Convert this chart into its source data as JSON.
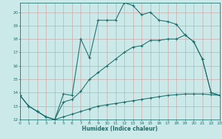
{
  "title": "",
  "xlabel": "Humidex (Indice chaleur)",
  "ylabel": "",
  "bg_color": "#cce9e9",
  "grid_color": "#b0d4d4",
  "line_color": "#1a6e6a",
  "xlim": [
    0,
    23
  ],
  "ylim": [
    12,
    20.7
  ],
  "yticks": [
    12,
    13,
    14,
    15,
    16,
    17,
    18,
    19,
    20
  ],
  "xticks": [
    0,
    1,
    2,
    3,
    4,
    5,
    6,
    7,
    8,
    9,
    10,
    11,
    12,
    13,
    14,
    15,
    16,
    17,
    18,
    19,
    20,
    21,
    22,
    23
  ],
  "line1_x": [
    0,
    1,
    2,
    3,
    4,
    5,
    6,
    7,
    8,
    9,
    10,
    11,
    12,
    13,
    14,
    15,
    16,
    17,
    18,
    19,
    20,
    21,
    22,
    23
  ],
  "line1_y": [
    13.8,
    13.0,
    12.6,
    12.2,
    12.0,
    13.9,
    13.8,
    18.0,
    16.6,
    19.4,
    19.4,
    19.4,
    20.7,
    20.5,
    19.8,
    20.0,
    19.4,
    19.3,
    19.1,
    18.3,
    17.8,
    16.5,
    14.0,
    13.8
  ],
  "line2_x": [
    0,
    1,
    2,
    3,
    4,
    5,
    6,
    7,
    8,
    9,
    10,
    11,
    12,
    13,
    14,
    15,
    16,
    17,
    18,
    19,
    20,
    21,
    22,
    23
  ],
  "line2_y": [
    13.8,
    13.0,
    12.6,
    12.2,
    12.0,
    13.3,
    13.5,
    14.1,
    15.0,
    15.5,
    16.0,
    16.5,
    17.0,
    17.4,
    17.5,
    17.9,
    17.9,
    18.0,
    18.0,
    18.3,
    17.8,
    16.5,
    14.0,
    13.8
  ],
  "line3_x": [
    0,
    1,
    2,
    3,
    4,
    5,
    6,
    7,
    8,
    9,
    10,
    11,
    12,
    13,
    14,
    15,
    16,
    17,
    18,
    19,
    20,
    21,
    22,
    23
  ],
  "line3_y": [
    13.8,
    13.0,
    12.6,
    12.2,
    12.0,
    12.2,
    12.4,
    12.6,
    12.8,
    13.0,
    13.1,
    13.2,
    13.3,
    13.4,
    13.5,
    13.6,
    13.7,
    13.8,
    13.85,
    13.9,
    13.9,
    13.9,
    13.85,
    13.8
  ]
}
